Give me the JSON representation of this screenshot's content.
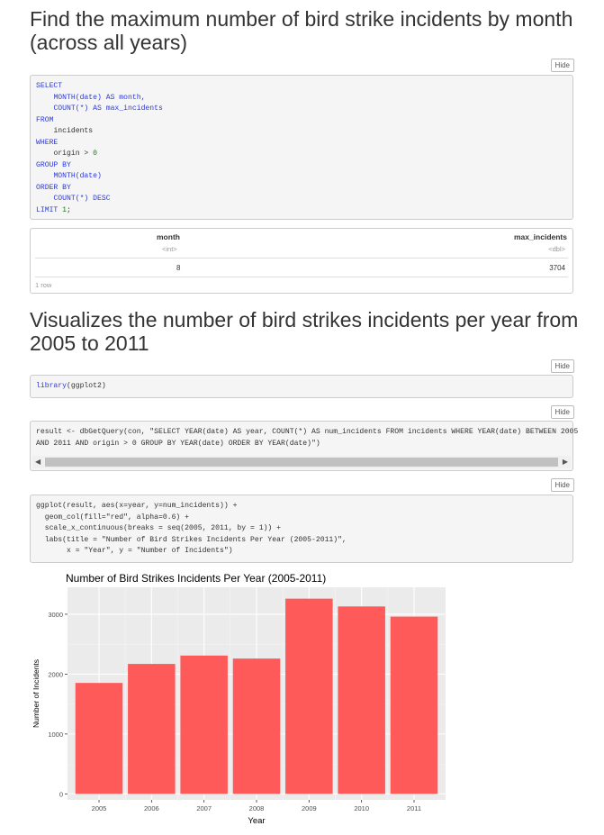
{
  "section1": {
    "title": "Find the maximum number of bird strike incidents by month (across all years)",
    "hide_label": "Hide"
  },
  "sql_code": {
    "l1": "SELECT",
    "l2": "MONTH(date) AS month,",
    "l3": "COUNT(*) AS max_incidents",
    "l4": "FROM",
    "l5": "incidents",
    "l6": "WHERE",
    "l7_a": "origin > ",
    "l7_b": "0",
    "l8": "GROUP BY",
    "l9": "MONTH(date)",
    "l10": "ORDER BY",
    "l11": "COUNT(*) DESC",
    "l12_a": "LIMIT ",
    "l12_b": "1",
    "l12_c": ";"
  },
  "result_table": {
    "columns": [
      {
        "name": "month",
        "type": "<int>"
      },
      {
        "name": "max_incidents",
        "type": "<dbl>"
      }
    ],
    "rows": [
      [
        "8",
        "3704"
      ]
    ],
    "footer": "1 row"
  },
  "section2": {
    "title": "Visualizes the number of bird strikes incidents per year from 2005 to 2011",
    "hide_label": "Hide"
  },
  "code_library": {
    "fn": "library",
    "arg": "(ggplot2)"
  },
  "code_query": {
    "line1": "result <- dbGetQuery(con, \"SELECT YEAR(date) AS year, COUNT(*) AS num_incidents FROM incidents WHERE YEAR(date) BETWEEN 2005",
    "line2": "AND 2011 AND origin > 0 GROUP BY YEAR(date) ORDER BY YEAR(date)\")"
  },
  "code_plot": {
    "line1": "ggplot(result, aes(x=year, y=num_incidents)) +",
    "line2": "  geom_col(fill=\"red\", alpha=0.6) +",
    "line3": "  scale_x_continuous(breaks = seq(2005, 2011, by = 1)) +",
    "line4": "  labs(title = \"Number of Bird Strikes Incidents Per Year (2005-2011)\",",
    "line5": "       x = \"Year\", y = \"Number of Incidents\")"
  },
  "chart_data": {
    "type": "bar",
    "title": "Number of Bird Strikes Incidents Per Year (2005-2011)",
    "xlabel": "Year",
    "ylabel": "Number of Incidents",
    "categories": [
      "2005",
      "2006",
      "2007",
      "2008",
      "2009",
      "2010",
      "2011"
    ],
    "values": [
      1853,
      2170,
      2310,
      2260,
      3260,
      3130,
      2960
    ],
    "yticks": [
      "0",
      "1000",
      "2000",
      "3000"
    ],
    "ylim": [
      -100,
      3450
    ],
    "bar_color": "#ff5a5a",
    "panel_color": "#ebebeb",
    "grid": true
  }
}
